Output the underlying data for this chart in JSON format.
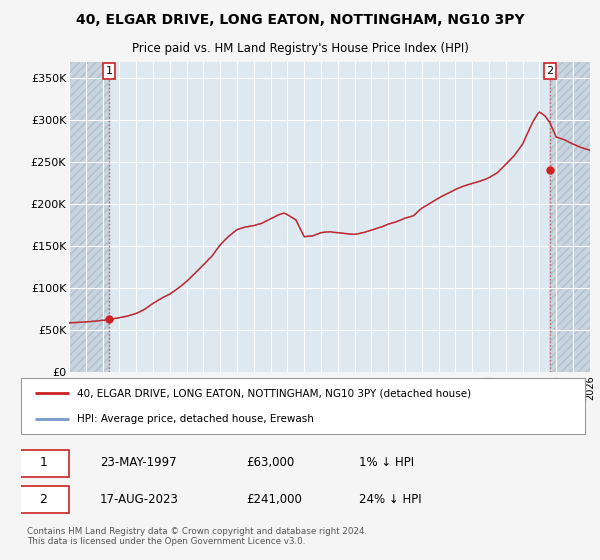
{
  "title_line1": "40, ELGAR DRIVE, LONG EATON, NOTTINGHAM, NG10 3PY",
  "title_line2": "Price paid vs. HM Land Registry's House Price Index (HPI)",
  "ylim": [
    0,
    370000
  ],
  "yticks": [
    0,
    50000,
    100000,
    150000,
    200000,
    250000,
    300000,
    350000
  ],
  "ytick_labels": [
    "£0",
    "£50K",
    "£100K",
    "£150K",
    "£200K",
    "£250K",
    "£300K",
    "£350K"
  ],
  "hpi_color": "#7799cc",
  "price_color": "#cc2222",
  "marker_color": "#cc2222",
  "dashed_line_color": "#cc4444",
  "annotation_box_color": "#cc2222",
  "background_color": "#dde8f0",
  "hatch_color": "#c8d4e0",
  "grid_color": "#ffffff",
  "legend_label_price": "40, ELGAR DRIVE, LONG EATON, NOTTINGHAM, NG10 3PY (detached house)",
  "legend_label_hpi": "HPI: Average price, detached house, Erewash",
  "annotation1_date": "23-MAY-1997",
  "annotation1_price": "£63,000",
  "annotation1_hpi": "1% ↓ HPI",
  "annotation2_date": "17-AUG-2023",
  "annotation2_price": "£241,000",
  "annotation2_hpi": "24% ↓ HPI",
  "copyright_text": "Contains HM Land Registry data © Crown copyright and database right 2024.\nThis data is licensed under the Open Government Licence v3.0.",
  "sale1_year": 1997.38,
  "sale1_value": 63000,
  "sale2_year": 2023.63,
  "sale2_value": 241000,
  "xmin": 1995,
  "xmax": 2026
}
